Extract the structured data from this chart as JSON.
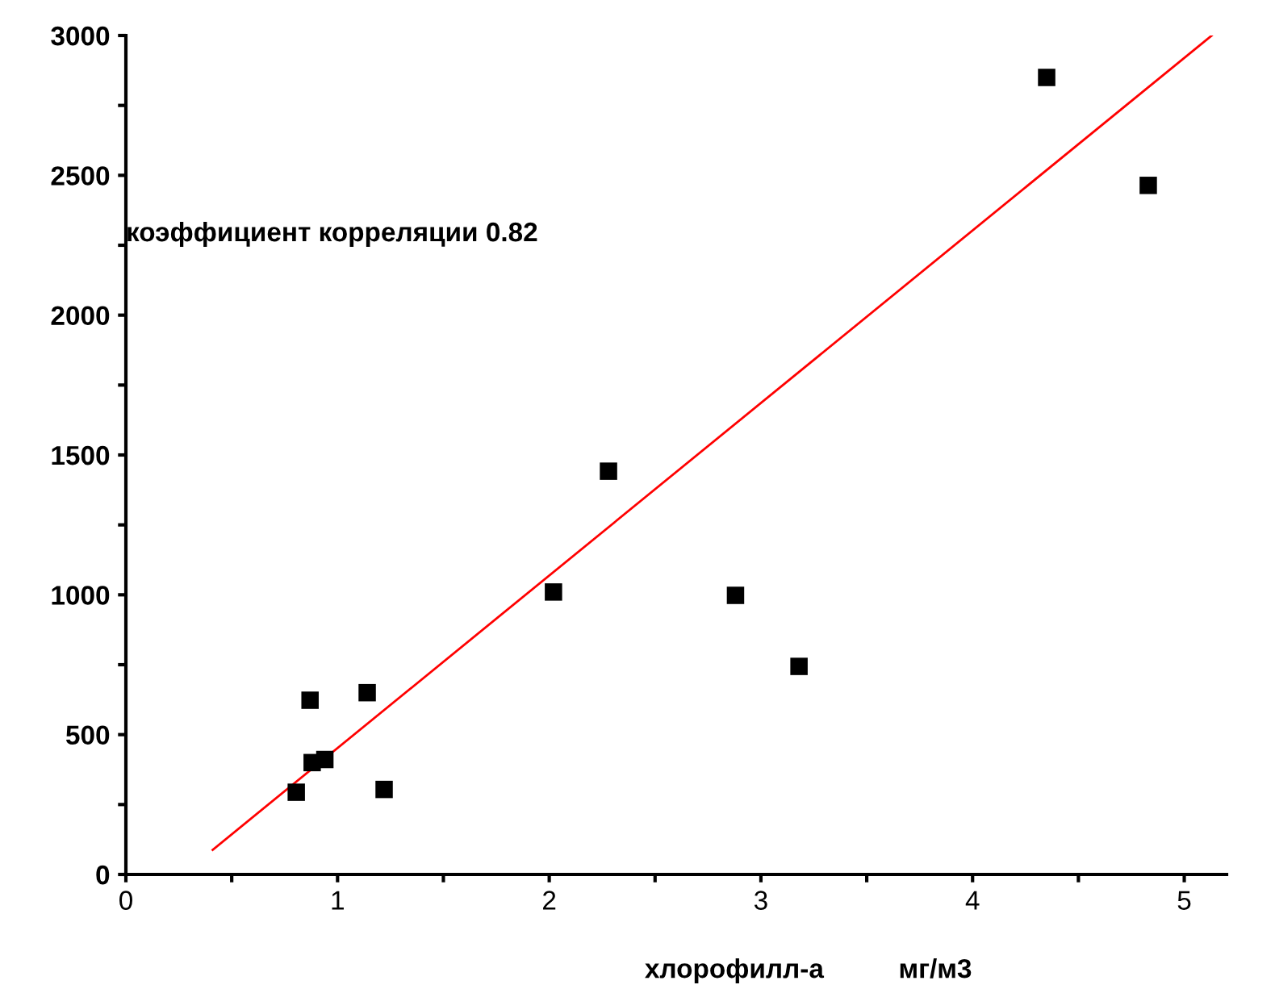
{
  "chart_data": {
    "type": "scatter",
    "xlabel": "хлорофилл-а          мг/м3",
    "annotations": [
      "коэффициент корреляции 0.82"
    ],
    "series": [
      {
        "color": "#000000",
        "marker": "square",
        "x": [
          0.805,
          0.87,
          0.88,
          0.94,
          1.14,
          1.22,
          2.02,
          2.28,
          2.88,
          3.18,
          4.35,
          4.83
        ],
        "values": [
          294,
          623,
          400,
          411,
          650,
          304,
          1010,
          1442,
          998,
          744,
          2850,
          2464
        ]
      },
      {
        "type": "line",
        "color": "#ff0000",
        "marker": "none",
        "line_style": "solid",
        "x": [
          0.41,
          5.13
        ],
        "values": [
          88,
          3000
        ]
      }
    ],
    "xlim": [
      0,
      5.2
    ],
    "ylim": [
      0,
      3000
    ],
    "xticks": [
      0,
      {
        "value": 0.5,
        "label": null
      },
      1,
      {
        "value": 1.5,
        "label": null
      },
      2,
      {
        "value": 2.5,
        "label": null
      },
      3,
      {
        "value": 3.5,
        "label": null
      },
      4,
      {
        "value": 4.5,
        "label": null
      },
      5
    ],
    "yticks": [
      0,
      {
        "value": 250,
        "label": null
      },
      500,
      {
        "value": 750,
        "label": null
      },
      1000,
      {
        "value": 1250,
        "label": null
      },
      1500,
      {
        "value": 1750,
        "label": null
      },
      2000,
      {
        "value": 2250,
        "label": null
      },
      2500,
      {
        "value": 2750,
        "label": null
      },
      3000
    ],
    "grid": false,
    "legend": false
  }
}
